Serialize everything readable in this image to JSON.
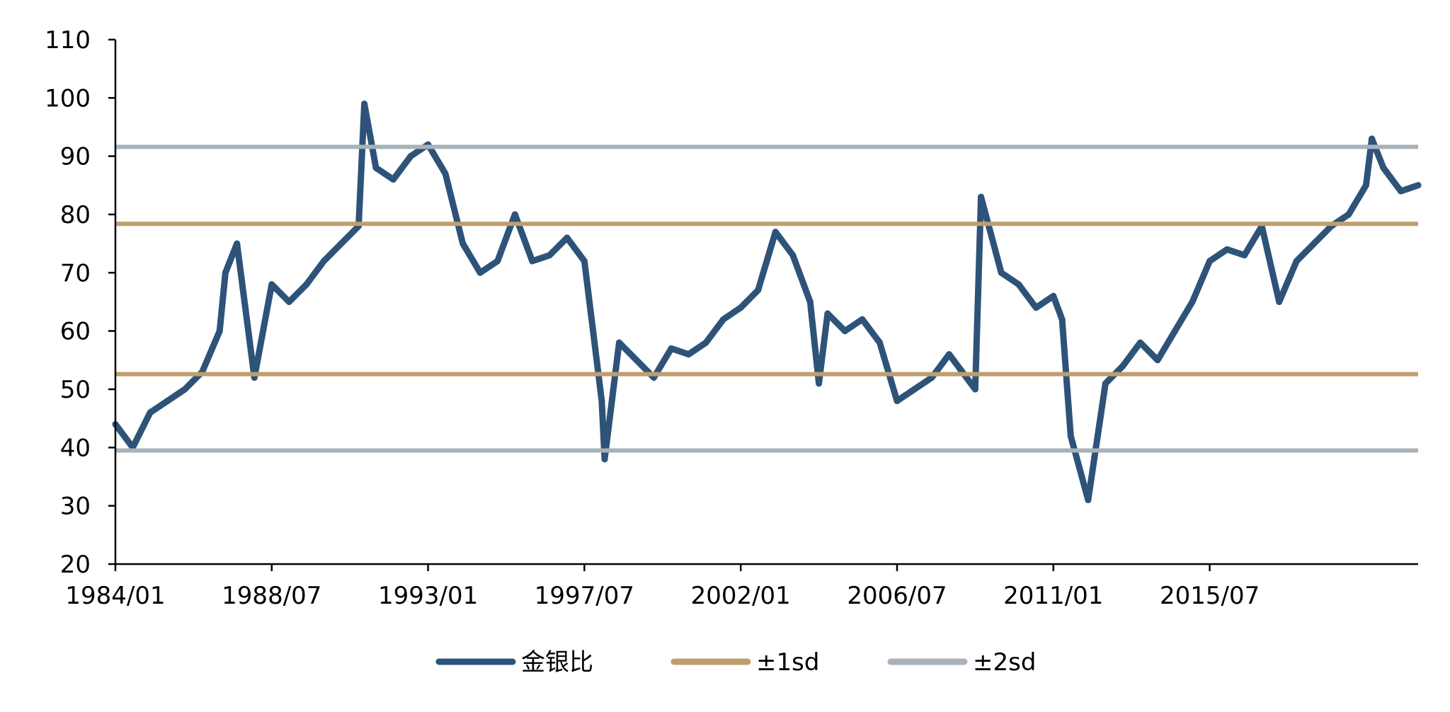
{
  "chart_data": {
    "type": "line",
    "title": "",
    "xlabel": "",
    "ylabel": "",
    "ylim": [
      20,
      110
    ],
    "yticks": [
      20,
      30,
      40,
      50,
      60,
      70,
      80,
      90,
      100,
      110
    ],
    "xlim": [
      "1984/01",
      "2021/07"
    ],
    "xticks": [
      "1984/01",
      "1988/07",
      "1993/01",
      "1997/07",
      "2002/01",
      "2006/07",
      "2011/01",
      "2015/07"
    ],
    "grid": false,
    "legend_position": "bottom",
    "series": [
      {
        "name": "金银比",
        "color": "#2E5379",
        "x": [
          "1984/01",
          "1984/07",
          "1985/01",
          "1985/07",
          "1986/01",
          "1986/07",
          "1987/01",
          "1987/03",
          "1987/07",
          "1988/01",
          "1988/07",
          "1989/01",
          "1989/07",
          "1990/01",
          "1990/07",
          "1991/01",
          "1991/03",
          "1991/07",
          "1992/01",
          "1992/07",
          "1993/01",
          "1993/07",
          "1994/01",
          "1994/07",
          "1995/01",
          "1995/07",
          "1996/01",
          "1996/07",
          "1997/01",
          "1997/07",
          "1998/01",
          "1998/02",
          "1998/07",
          "1999/01",
          "1999/07",
          "2000/01",
          "2000/07",
          "2001/01",
          "2001/07",
          "2002/01",
          "2002/07",
          "2003/01",
          "2003/07",
          "2004/01",
          "2004/04",
          "2004/07",
          "2005/01",
          "2005/07",
          "2006/01",
          "2006/07",
          "2007/01",
          "2007/07",
          "2008/01",
          "2008/07",
          "2008/10",
          "2008/12",
          "2009/07",
          "2010/01",
          "2010/07",
          "2011/01",
          "2011/04",
          "2011/07",
          "2012/01",
          "2012/07",
          "2013/01",
          "2013/07",
          "2014/01",
          "2014/07",
          "2015/01",
          "2015/07",
          "2016/01",
          "2016/07",
          "2017/01",
          "2017/07",
          "2018/01",
          "2018/07",
          "2019/01",
          "2019/07",
          "2020/01",
          "2020/03",
          "2020/07",
          "2021/01",
          "2021/07"
        ],
        "values": [
          44,
          40,
          46,
          48,
          50,
          53,
          60,
          70,
          75,
          52,
          68,
          65,
          68,
          72,
          75,
          78,
          99,
          88,
          86,
          90,
          92,
          87,
          75,
          70,
          72,
          80,
          72,
          73,
          76,
          72,
          48,
          38,
          58,
          55,
          52,
          57,
          56,
          58,
          62,
          64,
          67,
          77,
          73,
          65,
          51,
          63,
          60,
          62,
          58,
          48,
          50,
          52,
          56,
          52,
          50,
          83,
          70,
          68,
          64,
          66,
          62,
          42,
          31,
          51,
          54,
          58,
          55,
          60,
          65,
          72,
          74,
          73,
          78,
          65,
          72,
          75,
          78,
          80,
          85,
          93,
          88,
          84,
          85
        ]
      }
    ],
    "reference_lines": [
      {
        "name": "±1sd",
        "color": "#BF9E6E",
        "values": [
          52.6,
          78.4
        ]
      },
      {
        "name": "±2sd",
        "color": "#A8B2BA",
        "values": [
          39.5,
          91.6
        ]
      }
    ]
  }
}
